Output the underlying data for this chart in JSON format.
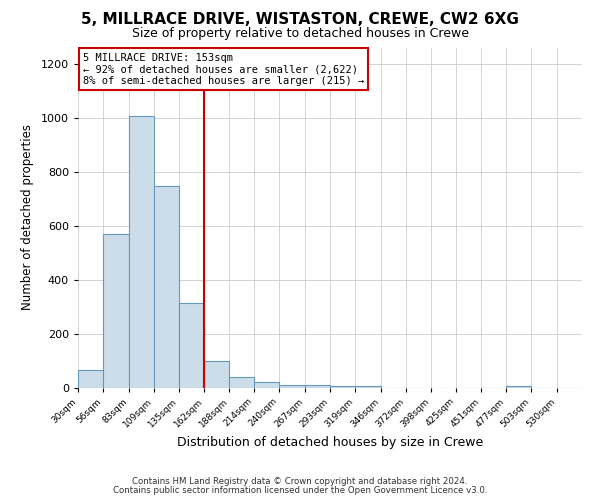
{
  "title": "5, MILLRACE DRIVE, WISTASTON, CREWE, CW2 6XG",
  "subtitle": "Size of property relative to detached houses in Crewe",
  "xlabel": "Distribution of detached houses by size in Crewe",
  "ylabel": "Number of detached properties",
  "bar_color": "#ccdde9",
  "bar_edge_color": "#6699bb",
  "annotation_box_edge_color": "#cc0000",
  "vline_color": "#cc0000",
  "vline_x": 162,
  "annotation_lines": [
    "5 MILLRACE DRIVE: 153sqm",
    "← 92% of detached houses are smaller (2,622)",
    "8% of semi-detached houses are larger (215) →"
  ],
  "bin_edges": [
    30,
    56,
    83,
    109,
    135,
    162,
    188,
    214,
    240,
    267,
    293,
    319,
    346,
    372,
    398,
    425,
    451,
    477,
    503,
    530,
    556
  ],
  "bin_counts": [
    65,
    570,
    1005,
    745,
    315,
    100,
    38,
    20,
    10,
    8,
    7,
    6,
    0,
    0,
    0,
    0,
    0,
    6,
    0,
    0
  ],
  "ylim": [
    0,
    1260
  ],
  "yticks": [
    0,
    200,
    400,
    600,
    800,
    1000,
    1200
  ],
  "footer_lines": [
    "Contains HM Land Registry data © Crown copyright and database right 2024.",
    "Contains public sector information licensed under the Open Government Licence v3.0."
  ],
  "background_color": "#ffffff",
  "grid_color": "#cccccc"
}
